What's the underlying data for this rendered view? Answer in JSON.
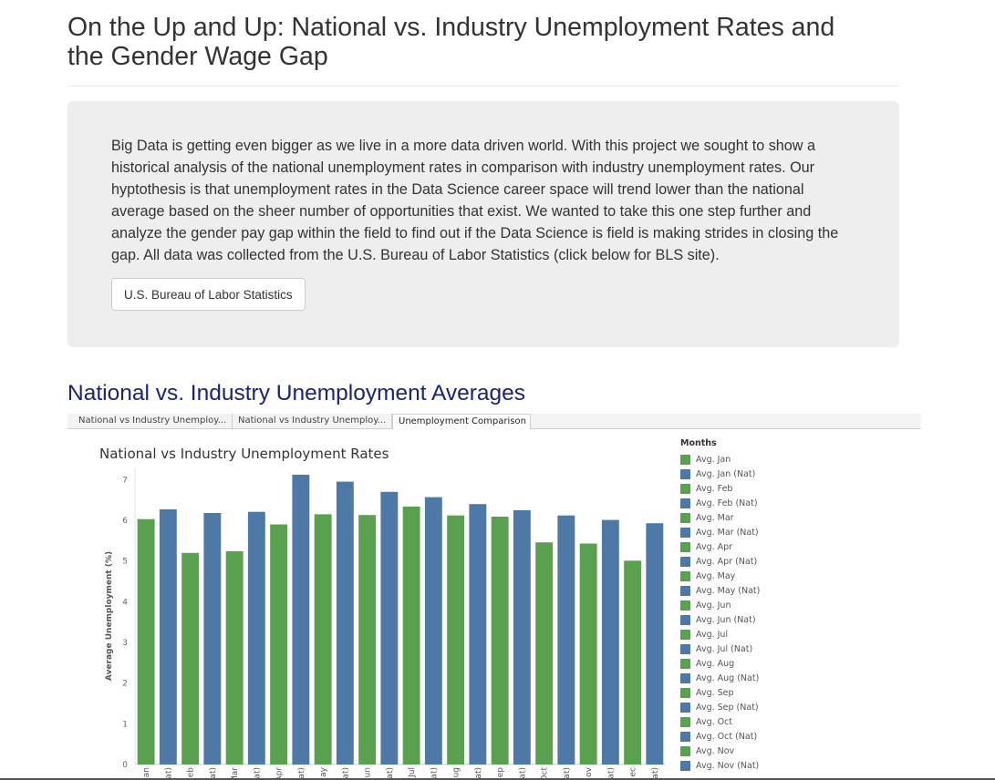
{
  "page": {
    "title": "On the Up and Up: National vs. Industry Unemployment Rates and the Gender Wage Gap",
    "intro": "Big Data is getting even bigger as we live in a more data driven world. With this project we sought to show a historical analysis of the national unemployment rates in comparison with industry unemployment rates. Our hyptothesis is that unemployment rates in the Data Science career space will trend lower than the national average based on the sheer number of opportunities that exist. We wanted to take this one step further and analyze the gender pay gap within the field to find out if the Data Science is field is making strides in closing the gap. All data was collected from the U.S. Bureau of Labor Statistics (click below for BLS site).",
    "bls_button": "U.S. Bureau of Labor Statistics",
    "section_title": "National vs. Industry Unemployment Averages"
  },
  "tabs": [
    {
      "label": "National vs Industry Unemploy..."
    },
    {
      "label": "National vs Industry Unemploy..."
    },
    {
      "label": "Unemployment Comparison",
      "active": true
    }
  ],
  "legend": {
    "title": "Months",
    "items": [
      {
        "label": "Avg. Jan",
        "color": "#59a14f"
      },
      {
        "label": "Avg. Jan (Nat)",
        "color": "#4e79a7"
      },
      {
        "label": "Avg. Feb",
        "color": "#59a14f"
      },
      {
        "label": "Avg. Feb (Nat)",
        "color": "#4e79a7"
      },
      {
        "label": "Avg. Mar",
        "color": "#59a14f"
      },
      {
        "label": "Avg. Mar (Nat)",
        "color": "#4e79a7"
      },
      {
        "label": "Avg. Apr",
        "color": "#59a14f"
      },
      {
        "label": "Avg. Apr (Nat)",
        "color": "#4e79a7"
      },
      {
        "label": "Avg. May",
        "color": "#59a14f"
      },
      {
        "label": "Avg. May (Nat)",
        "color": "#4e79a7"
      },
      {
        "label": "Avg. Jun",
        "color": "#59a14f"
      },
      {
        "label": "Avg. Jun (Nat)",
        "color": "#4e79a7"
      },
      {
        "label": "Avg. Jul",
        "color": "#59a14f"
      },
      {
        "label": "Avg. Jul (Nat)",
        "color": "#4e79a7"
      },
      {
        "label": "Avg. Aug",
        "color": "#59a14f"
      },
      {
        "label": "Avg. Aug (Nat)",
        "color": "#4e79a7"
      },
      {
        "label": "Avg. Sep",
        "color": "#59a14f"
      },
      {
        "label": "Avg. Sep (Nat)",
        "color": "#4e79a7"
      },
      {
        "label": "Avg. Oct",
        "color": "#59a14f"
      },
      {
        "label": "Avg. Oct (Nat)",
        "color": "#4e79a7"
      },
      {
        "label": "Avg. Nov",
        "color": "#59a14f"
      },
      {
        "label": "Avg. Nov (Nat)",
        "color": "#4e79a7"
      }
    ]
  },
  "chart_data": {
    "type": "bar",
    "title": "National vs Industry Unemployment Rates",
    "xlabel": "",
    "ylabel": "Average Unemployment (%)",
    "ylim": [
      0,
      7.3
    ],
    "yticks": [
      0,
      1,
      2,
      3,
      4,
      5,
      6,
      7
    ],
    "grid": false,
    "legend_position": "right",
    "categories": [
      "an",
      "at)",
      "eb",
      "at)",
      "Mar",
      "at)",
      "Apr",
      "at)",
      "ay",
      "at)",
      "un",
      "at)",
      "Jul",
      "at)",
      "ug",
      "at)",
      "ep",
      "at)",
      "Oct",
      "at)",
      "ov",
      "at)",
      "ec",
      "at)"
    ],
    "values": [
      6.03,
      6.27,
      5.2,
      6.18,
      5.24,
      6.21,
      5.9,
      7.12,
      6.15,
      6.95,
      6.13,
      6.7,
      6.34,
      6.57,
      6.12,
      6.4,
      6.09,
      6.25,
      5.46,
      6.12,
      5.43,
      6.01,
      5.01,
      5.93
    ],
    "colors": [
      "#59a14f",
      "#4e79a7",
      "#59a14f",
      "#4e79a7",
      "#59a14f",
      "#4e79a7",
      "#59a14f",
      "#4e79a7",
      "#59a14f",
      "#4e79a7",
      "#59a14f",
      "#4e79a7",
      "#59a14f",
      "#4e79a7",
      "#59a14f",
      "#4e79a7",
      "#59a14f",
      "#4e79a7",
      "#59a14f",
      "#4e79a7",
      "#59a14f",
      "#4e79a7",
      "#59a14f",
      "#4e79a7"
    ]
  }
}
